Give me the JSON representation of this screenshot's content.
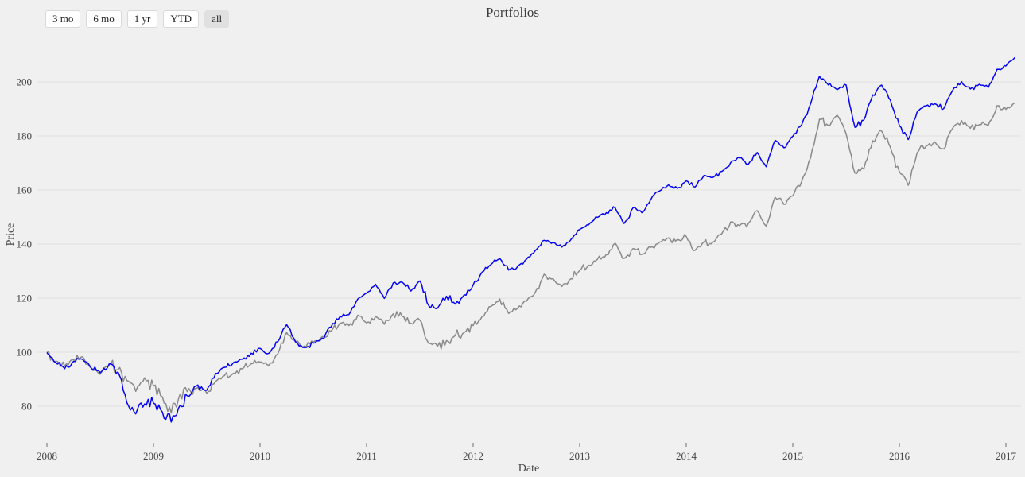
{
  "header": {
    "title": "Portfolios"
  },
  "range_selector": {
    "buttons": [
      {
        "label": "3 mo",
        "active": false
      },
      {
        "label": "6 mo",
        "active": false
      },
      {
        "label": "1 yr",
        "active": false
      },
      {
        "label": "YTD",
        "active": false
      },
      {
        "label": "all",
        "active": true
      }
    ]
  },
  "chart_data": {
    "type": "line",
    "title": "Portfolios",
    "xlabel": "Date",
    "ylabel": "Price",
    "x_ticks": [
      2008,
      2009,
      2010,
      2011,
      2012,
      2013,
      2014,
      2015,
      2016,
      2017
    ],
    "y_ticks": [
      80,
      100,
      120,
      140,
      160,
      180,
      200
    ],
    "xlim": [
      2007.95,
      2017.25
    ],
    "ylim": [
      66,
      216
    ],
    "grid": "horizontal-only",
    "legend": "none",
    "x_start": "2008-01",
    "x_frequency": "monthly",
    "series": [
      {
        "name": "gray",
        "color": "#8a8a8a",
        "values": [
          100,
          96.5,
          95,
          97,
          98.5,
          94,
          92,
          95,
          94,
          89,
          86,
          90,
          88,
          83,
          78,
          84,
          87,
          86.5,
          85,
          89,
          91.5,
          92,
          94,
          95.5,
          96.5,
          95,
          99.5,
          107,
          104,
          102,
          104,
          105.5,
          108,
          110.5,
          110,
          113.5,
          111,
          113,
          110.5,
          114,
          113.5,
          110.5,
          112,
          103,
          102.5,
          104,
          106.5,
          107,
          110,
          113,
          117,
          119.5,
          114.5,
          116,
          119,
          122,
          129,
          127,
          124.5,
          127,
          130.5,
          132,
          134.5,
          136,
          140.5,
          134.5,
          138.5,
          136,
          139,
          140.5,
          142.5,
          141.5,
          143,
          137.5,
          141,
          140.5,
          144,
          148,
          147,
          147.5,
          152.5,
          146.5,
          157.5,
          154.5,
          158,
          163,
          172,
          186,
          184,
          187.5,
          181,
          166,
          168,
          178,
          182,
          175.5,
          167,
          161.5,
          174,
          176,
          178,
          175,
          183,
          185.5,
          183,
          184,
          184,
          191,
          190,
          192.3
        ]
      },
      {
        "name": "blue",
        "color": "#0404f0",
        "values": [
          100,
          96,
          94,
          96.5,
          97.5,
          94,
          92.5,
          95.5,
          93,
          81,
          77.5,
          80.5,
          81.5,
          77.5,
          74.5,
          80,
          84,
          87.5,
          86,
          92,
          94.5,
          96,
          97.5,
          99.5,
          101.5,
          99.5,
          104,
          110,
          104,
          101.5,
          103.5,
          105,
          109.5,
          113,
          114,
          119.5,
          122,
          125,
          120,
          125.5,
          126,
          122.5,
          126.5,
          117,
          116.5,
          120.5,
          118,
          121,
          125,
          129.5,
          132.5,
          134.5,
          130.5,
          131.5,
          134.5,
          137.5,
          141.5,
          140.5,
          139,
          141.5,
          145.5,
          147,
          150,
          151.5,
          153.5,
          147.5,
          153.5,
          151.5,
          156.5,
          159.5,
          162,
          160.5,
          163.5,
          161,
          165.5,
          164.5,
          167,
          170,
          172,
          169.5,
          174,
          168.5,
          178.5,
          175.5,
          180,
          184,
          192,
          202,
          199,
          197,
          199,
          183,
          186,
          195,
          199,
          193,
          184,
          178.5,
          189,
          191,
          192,
          190,
          197,
          200,
          197.5,
          199,
          198,
          204.5,
          206,
          209
        ]
      }
    ]
  },
  "style": {
    "background": "#f0f0f0",
    "gridline_color": "#e2e2e2",
    "tick_label_color": "#444444",
    "tick_mark_color": "#6b6b6b",
    "title_color": "#3c3c3c",
    "blue_line": "#0404f0",
    "gray_line": "#8a8a8a"
  }
}
